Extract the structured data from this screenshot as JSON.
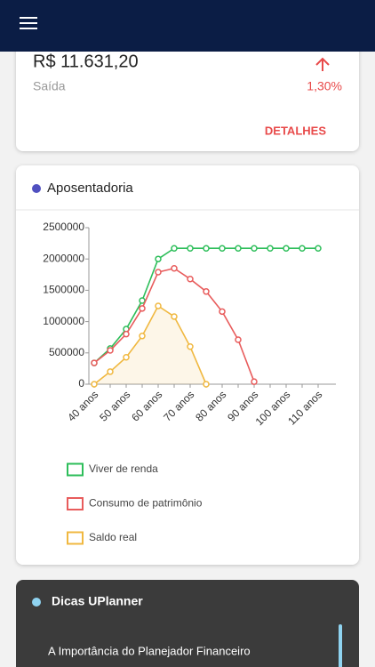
{
  "summary": {
    "amount": "R$ 11.631,20",
    "label": "Saída",
    "change": "1,30%",
    "action": "DETALHES"
  },
  "chart_data": {
    "type": "line",
    "title": "Aposentadoria",
    "categories": [
      "40 anos",
      null,
      "50 anos",
      null,
      "60 anos",
      null,
      "70 anos",
      null,
      "80 anos",
      null,
      "90 anos",
      null,
      "100 anos",
      null,
      "110 anos"
    ],
    "ylim": [
      0,
      2500000
    ],
    "yticks": [
      0,
      500000,
      1000000,
      1500000,
      2000000,
      2500000
    ],
    "series": [
      {
        "name": "Viver de renda",
        "color": "#2dbe5a",
        "area": false,
        "values": [
          340000,
          570000,
          880000,
          1335000,
          2000000,
          2170000,
          2170000,
          2170000,
          2170000,
          2170000,
          2170000,
          2170000,
          2170000,
          2170000,
          2170000
        ]
      },
      {
        "name": "Consumo de patrimônio",
        "color": "#e85c5c",
        "area": false,
        "values": [
          340000,
          540000,
          800000,
          1210000,
          1790000,
          1850000,
          1680000,
          1480000,
          1160000,
          710000,
          40000,
          null,
          null,
          null,
          null
        ]
      },
      {
        "name": "Saldo real",
        "color": "#f0b840",
        "area": true,
        "values": [
          0,
          200000,
          430000,
          770000,
          1250000,
          1080000,
          600000,
          0,
          null,
          null,
          null,
          null,
          null,
          null,
          null
        ]
      }
    ]
  },
  "tips": {
    "title": "Dicas UPlanner",
    "articles": [
      "A Importância do Planejador Financeiro"
    ]
  }
}
